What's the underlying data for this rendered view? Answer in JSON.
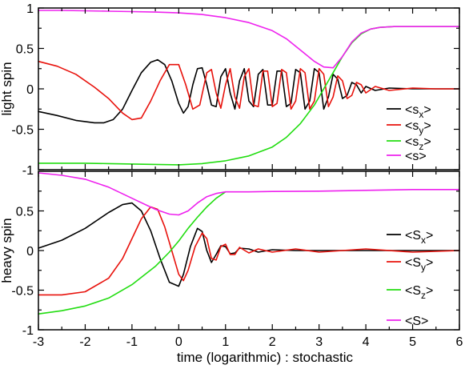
{
  "chart_data": [
    {
      "type": "line",
      "panel": "top",
      "title": "",
      "ylabel": "light spin",
      "xlabel": "",
      "xlim": [
        -3,
        6
      ],
      "ylim": [
        -1,
        1
      ],
      "xticks": [
        -3,
        -2,
        -1,
        0,
        1,
        2,
        3,
        4,
        5,
        6
      ],
      "yticks": [
        -1,
        -0.5,
        0,
        0.5,
        1
      ],
      "ytick_labels": [
        "-1",
        "-0.5",
        "0",
        "0.5",
        "1"
      ],
      "legend_position": "right",
      "legend": [
        {
          "label": "<s",
          "sub": "x",
          "tail": ">",
          "color": "#000000"
        },
        {
          "label": "<s",
          "sub": "y",
          "tail": ">",
          "color": "#e8120c"
        },
        {
          "label": "<s",
          "sub": "z",
          "tail": ">",
          "color": "#22dd11"
        },
        {
          "label": "<s>",
          "sub": "",
          "tail": "",
          "color": "#ee22ee"
        }
      ],
      "series": [
        {
          "name": "<sx>",
          "color": "#000000",
          "x": [
            -3,
            -2.6,
            -2.2,
            -1.8,
            -1.6,
            -1.4,
            -1.2,
            -1.0,
            -0.8,
            -0.6,
            -0.45,
            -0.3,
            -0.15,
            0.0,
            0.1,
            0.2,
            0.3,
            0.4,
            0.5,
            0.6,
            0.7,
            0.8,
            0.9,
            1.0,
            1.1,
            1.2,
            1.3,
            1.4,
            1.5,
            1.6,
            1.7,
            1.8,
            1.9,
            2.0,
            2.1,
            2.2,
            2.3,
            2.4,
            2.5,
            2.6,
            2.7,
            2.8,
            2.9,
            3.0,
            3.1,
            3.2,
            3.3,
            3.4,
            3.5,
            3.6,
            3.7,
            3.8,
            3.9,
            4.0,
            4.2,
            4.5,
            5.0,
            5.5,
            6.0
          ],
          "y": [
            -0.28,
            -0.33,
            -0.39,
            -0.42,
            -0.42,
            -0.38,
            -0.25,
            -0.02,
            0.2,
            0.33,
            0.36,
            0.3,
            0.1,
            -0.18,
            -0.3,
            -0.22,
            0.05,
            0.25,
            0.26,
            0.05,
            -0.2,
            -0.22,
            0.15,
            0.25,
            -0.05,
            -0.25,
            0.1,
            0.25,
            -0.15,
            -0.22,
            0.18,
            0.24,
            -0.2,
            -0.2,
            0.22,
            0.22,
            -0.22,
            -0.18,
            0.24,
            0.2,
            -0.25,
            -0.15,
            0.25,
            0.2,
            -0.25,
            -0.1,
            0.18,
            0.12,
            -0.12,
            -0.08,
            0.08,
            0.05,
            -0.05,
            0.03,
            -0.02,
            0.01,
            0.0,
            0.0,
            0.0
          ]
        },
        {
          "name": "<sy>",
          "color": "#e8120c",
          "x": [
            -3,
            -2.6,
            -2.2,
            -1.8,
            -1.5,
            -1.2,
            -1.0,
            -0.8,
            -0.6,
            -0.4,
            -0.2,
            0.0,
            0.15,
            0.3,
            0.45,
            0.6,
            0.7,
            0.8,
            0.9,
            1.0,
            1.1,
            1.2,
            1.3,
            1.4,
            1.5,
            1.6,
            1.7,
            1.8,
            1.9,
            2.0,
            2.1,
            2.2,
            2.3,
            2.4,
            2.5,
            2.6,
            2.7,
            2.8,
            2.9,
            3.0,
            3.1,
            3.2,
            3.3,
            3.4,
            3.5,
            3.6,
            3.7,
            3.8,
            3.9,
            4.0,
            4.2,
            4.5,
            5.0,
            5.5,
            6.0
          ],
          "y": [
            0.34,
            0.28,
            0.18,
            0.02,
            -0.12,
            -0.3,
            -0.38,
            -0.36,
            -0.15,
            0.1,
            0.3,
            0.3,
            0.05,
            -0.25,
            -0.2,
            0.2,
            0.24,
            -0.05,
            -0.24,
            0.05,
            0.25,
            -0.1,
            -0.24,
            0.15,
            0.25,
            -0.2,
            -0.22,
            0.22,
            0.22,
            -0.22,
            -0.18,
            0.24,
            0.2,
            -0.25,
            -0.15,
            0.25,
            0.2,
            -0.25,
            -0.15,
            0.25,
            0.18,
            -0.22,
            -0.1,
            0.16,
            0.1,
            -0.12,
            -0.08,
            0.08,
            0.05,
            -0.05,
            0.03,
            -0.02,
            0.01,
            0.0,
            0.0
          ]
        },
        {
          "name": "<sz>",
          "color": "#22dd11",
          "x": [
            -3,
            -2.5,
            -2.0,
            -1.5,
            -1.0,
            -0.5,
            0.0,
            0.5,
            1.0,
            1.5,
            2.0,
            2.3,
            2.6,
            2.9,
            3.1,
            3.3,
            3.5,
            3.7,
            3.9,
            4.1,
            4.3,
            4.6,
            5.0,
            5.5,
            6.0
          ],
          "y": [
            -0.92,
            -0.92,
            -0.92,
            -0.925,
            -0.93,
            -0.935,
            -0.94,
            -0.925,
            -0.89,
            -0.83,
            -0.72,
            -0.6,
            -0.43,
            -0.2,
            0.0,
            0.2,
            0.4,
            0.57,
            0.68,
            0.74,
            0.76,
            0.77,
            0.77,
            0.77,
            0.77
          ]
        },
        {
          "name": "<s>",
          "color": "#ee22ee",
          "x": [
            -3,
            -2.5,
            -2.0,
            -1.5,
            -1.0,
            -0.5,
            0.0,
            0.5,
            1.0,
            1.5,
            2.0,
            2.3,
            2.6,
            2.9,
            3.1,
            3.3,
            3.5,
            3.7,
            3.9,
            4.1,
            4.3,
            4.6,
            5.0,
            5.5,
            6.0
          ],
          "y": [
            0.97,
            0.97,
            0.965,
            0.96,
            0.955,
            0.95,
            0.94,
            0.92,
            0.88,
            0.82,
            0.72,
            0.62,
            0.48,
            0.34,
            0.27,
            0.26,
            0.4,
            0.58,
            0.69,
            0.74,
            0.76,
            0.77,
            0.77,
            0.77,
            0.77
          ]
        }
      ]
    },
    {
      "type": "line",
      "panel": "bottom",
      "title": "",
      "ylabel": "heavy spin",
      "xlabel": "time (logarithmic) : stochastic",
      "xlim": [
        -3,
        6
      ],
      "ylim": [
        -1,
        1
      ],
      "xticks": [
        -3,
        -2,
        -1,
        0,
        1,
        2,
        3,
        4,
        5,
        6
      ],
      "yticks": [
        -1,
        -0.5,
        0,
        0.5
      ],
      "ytick_labels": [
        "-1",
        "-0.5",
        "0",
        "0.5"
      ],
      "legend_position": "right",
      "legend": [
        {
          "label": "<S",
          "sub": "x",
          "tail": ">",
          "color": "#000000"
        },
        {
          "label": "<S",
          "sub": "y",
          "tail": ">",
          "color": "#e8120c"
        },
        {
          "label": "<S",
          "sub": "z",
          "tail": ">",
          "color": "#22dd11"
        },
        {
          "label": "<S>",
          "sub": "",
          "tail": "",
          "color": "#ee22ee"
        }
      ],
      "series": [
        {
          "name": "<Sx>",
          "color": "#000000",
          "x": [
            -3,
            -2.5,
            -2.0,
            -1.5,
            -1.2,
            -1.0,
            -0.8,
            -0.6,
            -0.4,
            -0.2,
            0.0,
            0.1,
            0.25,
            0.4,
            0.5,
            0.6,
            0.7,
            0.8,
            0.9,
            1.0,
            1.1,
            1.2,
            1.3,
            1.5,
            1.7,
            2.0,
            2.5,
            3.0,
            4.0,
            5.0,
            6.0
          ],
          "y": [
            0.03,
            0.13,
            0.28,
            0.48,
            0.58,
            0.6,
            0.5,
            0.25,
            -0.1,
            -0.4,
            -0.45,
            -0.3,
            0.05,
            0.28,
            0.24,
            0.0,
            -0.15,
            -0.05,
            0.06,
            0.05,
            -0.04,
            -0.03,
            0.03,
            0.02,
            -0.02,
            0.01,
            0.0,
            0.0,
            0.0,
            0.0,
            0.0
          ]
        },
        {
          "name": "<Sy>",
          "color": "#e8120c",
          "x": [
            -3,
            -2.5,
            -2.0,
            -1.5,
            -1.2,
            -1.0,
            -0.8,
            -0.6,
            -0.45,
            -0.3,
            -0.15,
            0.0,
            0.1,
            0.2,
            0.35,
            0.5,
            0.6,
            0.7,
            0.8,
            0.9,
            1.0,
            1.1,
            1.2,
            1.3,
            1.5,
            1.7,
            2.0,
            2.5,
            3.0,
            4.0,
            5.0,
            6.0
          ],
          "y": [
            -0.56,
            -0.56,
            -0.52,
            -0.35,
            -0.1,
            0.15,
            0.4,
            0.55,
            0.52,
            0.3,
            0.0,
            -0.3,
            -0.38,
            -0.25,
            0.05,
            0.22,
            0.15,
            -0.1,
            -0.12,
            0.05,
            0.08,
            -0.05,
            -0.05,
            0.04,
            -0.03,
            0.02,
            -0.02,
            0.02,
            -0.02,
            0.02,
            -0.02,
            0.0
          ]
        },
        {
          "name": "<Sz>",
          "color": "#22dd11",
          "x": [
            -3,
            -2.5,
            -2.0,
            -1.5,
            -1.0,
            -0.5,
            -0.2,
            0.0,
            0.2,
            0.4,
            0.6,
            0.8,
            1.0
          ],
          "y": [
            -0.8,
            -0.76,
            -0.7,
            -0.6,
            -0.43,
            -0.2,
            -0.02,
            0.12,
            0.28,
            0.42,
            0.55,
            0.66,
            0.74
          ]
        },
        {
          "name": "<S>",
          "color": "#ee22ee",
          "x": [
            -3,
            -2.5,
            -2.0,
            -1.5,
            -1.0,
            -0.5,
            -0.2,
            0.0,
            0.2,
            0.4,
            0.6,
            0.8,
            1.0,
            1.5,
            2.0,
            3.0,
            4.0,
            5.0,
            6.0
          ],
          "y": [
            0.98,
            0.95,
            0.9,
            0.8,
            0.66,
            0.52,
            0.46,
            0.45,
            0.5,
            0.6,
            0.68,
            0.72,
            0.74,
            0.74,
            0.745,
            0.75,
            0.76,
            0.77,
            0.77
          ]
        }
      ]
    }
  ]
}
